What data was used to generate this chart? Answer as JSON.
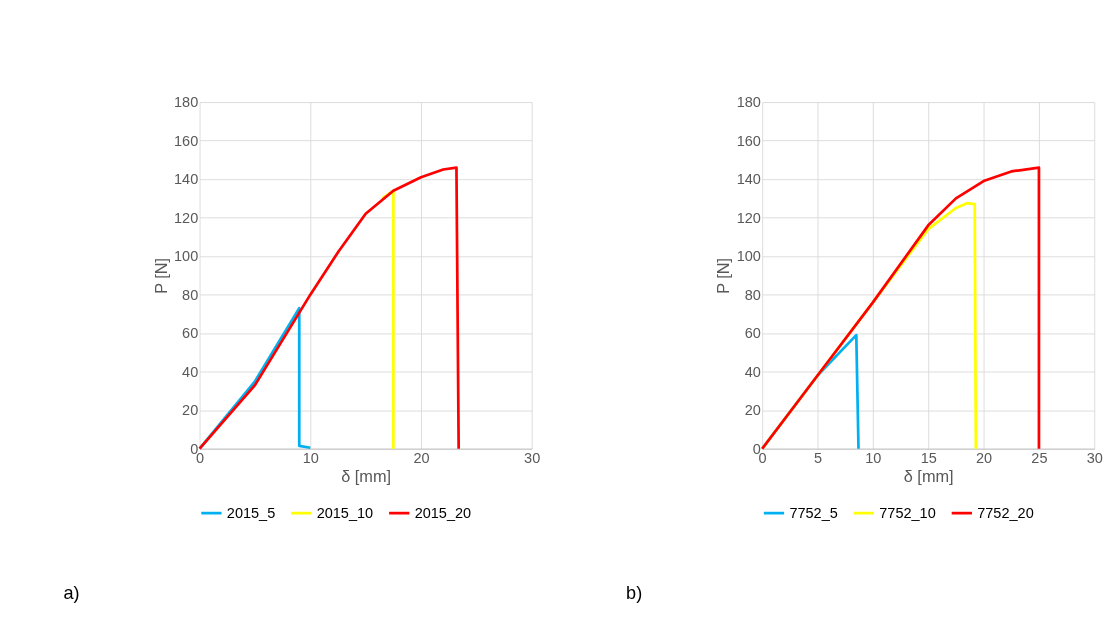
{
  "chart_data": [
    {
      "type": "line",
      "xlabel": "δ [mm]",
      "ylabel": "P [N]",
      "xlim": [
        0,
        30
      ],
      "xticks": [
        0,
        10,
        20,
        30
      ],
      "ylim": [
        0,
        180
      ],
      "yticks": [
        0,
        20,
        40,
        60,
        80,
        100,
        120,
        140,
        160,
        180
      ],
      "grid": true,
      "legend": "bottom",
      "annotations": [
        "a)"
      ],
      "series": [
        {
          "name": "2015_5",
          "color": "#00b0f0",
          "x": [
            0,
            5,
            9.0,
            9.0,
            10
          ],
          "values": [
            0,
            35,
            73,
            1.5,
            0.5
          ]
        },
        {
          "name": "2015_10",
          "color": "#ffff00",
          "x": [
            16.5,
            17.5,
            17.5
          ],
          "values": [
            130,
            134,
            0
          ]
        },
        {
          "name": "2015_20",
          "color": "#ff0000",
          "x": [
            0,
            5,
            10,
            12.5,
            15,
            17.5,
            20,
            22,
            23.2,
            23.4
          ],
          "values": [
            0,
            33,
            80,
            102,
            122,
            134,
            141,
            145,
            146,
            0
          ]
        }
      ]
    },
    {
      "type": "line",
      "xlabel": "δ [mm]",
      "ylabel": "P [N]",
      "xlim": [
        0,
        30
      ],
      "xticks": [
        0,
        5,
        10,
        15,
        20,
        25,
        30
      ],
      "ylim": [
        0,
        180
      ],
      "yticks": [
        0,
        20,
        40,
        60,
        80,
        100,
        120,
        140,
        160,
        180
      ],
      "grid": true,
      "legend": "bottom",
      "annotations": [
        "b)"
      ],
      "series": [
        {
          "name": "7752_5",
          "color": "#00b0f0",
          "x": [
            0,
            5,
            7.5,
            8.5,
            8.7
          ],
          "values": [
            0,
            38,
            53,
            59,
            0
          ]
        },
        {
          "name": "7752_10",
          "color": "#ffff00",
          "x": [
            0,
            5,
            10,
            15,
            17.5,
            18.5,
            19.2,
            19.3
          ],
          "values": [
            0,
            38,
            76,
            114,
            125,
            127.5,
            127,
            0
          ]
        },
        {
          "name": "7752_20",
          "color": "#ff0000",
          "x": [
            0,
            5,
            10,
            15,
            17.5,
            20,
            22.5,
            25,
            25
          ],
          "values": [
            0,
            38,
            76,
            116,
            130,
            139,
            144,
            146,
            0
          ]
        }
      ]
    }
  ]
}
